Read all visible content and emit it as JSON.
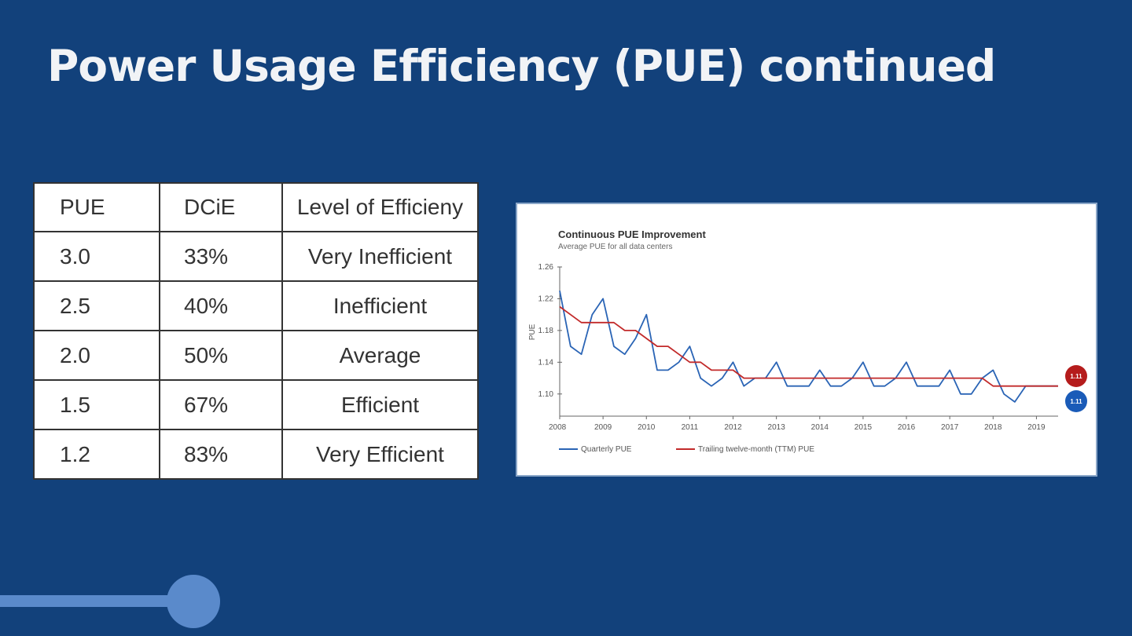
{
  "slide": {
    "title": "Power Usage Efficiency (PUE) continued"
  },
  "table": {
    "headers": [
      "PUE",
      "DCiE",
      "Level of Efficieny"
    ],
    "rows": [
      [
        "3.0",
        "33%",
        "Very Inefficient"
      ],
      [
        "2.5",
        "40%",
        "Inefficient"
      ],
      [
        "2.0",
        "50%",
        "Average"
      ],
      [
        "1.5",
        "67%",
        "Efficient"
      ],
      [
        "1.2",
        "83%",
        "Very Efficient"
      ]
    ]
  },
  "chart_data": {
    "type": "line",
    "title": "Continuous PUE Improvement",
    "subtitle": "Average PUE for all data centers",
    "ylabel": "PUE",
    "xlabel": "",
    "ylim": [
      1.08,
      1.26
    ],
    "yticks": [
      "1.26",
      "1.22",
      "1.18",
      "1.14",
      "1.10"
    ],
    "xticks": [
      "2008",
      "2009",
      "2010",
      "2011",
      "2012",
      "2013",
      "2014",
      "2015",
      "2016",
      "2017",
      "2018",
      "2019"
    ],
    "xlim": [
      2008,
      2019.5
    ],
    "grid": false,
    "legend_position": "bottom-left",
    "colors": {
      "quarterly": "#2a64b5",
      "ttm": "#c22a2a"
    },
    "series": [
      {
        "name": "Quarterly PUE",
        "x": [
          2008.0,
          2008.25,
          2008.5,
          2008.75,
          2009.0,
          2009.25,
          2009.5,
          2009.75,
          2010.0,
          2010.25,
          2010.5,
          2010.75,
          2011.0,
          2011.25,
          2011.5,
          2011.75,
          2012.0,
          2012.25,
          2012.5,
          2012.75,
          2013.0,
          2013.25,
          2013.5,
          2013.75,
          2014.0,
          2014.25,
          2014.5,
          2014.75,
          2015.0,
          2015.25,
          2015.5,
          2015.75,
          2016.0,
          2016.25,
          2016.5,
          2016.75,
          2017.0,
          2017.25,
          2017.5,
          2017.75,
          2018.0,
          2018.25,
          2018.5,
          2018.75,
          2019.0,
          2019.25,
          2019.5
        ],
        "y": [
          1.23,
          1.16,
          1.15,
          1.2,
          1.22,
          1.16,
          1.15,
          1.17,
          1.2,
          1.13,
          1.13,
          1.14,
          1.16,
          1.12,
          1.11,
          1.12,
          1.14,
          1.11,
          1.12,
          1.12,
          1.14,
          1.11,
          1.11,
          1.11,
          1.13,
          1.11,
          1.11,
          1.12,
          1.14,
          1.11,
          1.11,
          1.12,
          1.14,
          1.11,
          1.11,
          1.11,
          1.13,
          1.1,
          1.1,
          1.12,
          1.13,
          1.1,
          1.09,
          1.11,
          1.11,
          1.11,
          1.11
        ]
      },
      {
        "name": "Trailing twelve-month (TTM) PUE",
        "x": [
          2008.0,
          2008.25,
          2008.5,
          2008.75,
          2009.0,
          2009.25,
          2009.5,
          2009.75,
          2010.0,
          2010.25,
          2010.5,
          2010.75,
          2011.0,
          2011.25,
          2011.5,
          2011.75,
          2012.0,
          2012.25,
          2012.5,
          2012.75,
          2013.0,
          2013.25,
          2013.5,
          2014.0,
          2015.0,
          2016.0,
          2017.0,
          2017.75,
          2018.0,
          2018.25,
          2018.5,
          2018.75,
          2019.0,
          2019.25,
          2019.5
        ],
        "y": [
          1.21,
          1.2,
          1.19,
          1.19,
          1.19,
          1.19,
          1.18,
          1.18,
          1.17,
          1.16,
          1.16,
          1.15,
          1.14,
          1.14,
          1.13,
          1.13,
          1.13,
          1.12,
          1.12,
          1.12,
          1.12,
          1.12,
          1.12,
          1.12,
          1.12,
          1.12,
          1.12,
          1.12,
          1.11,
          1.11,
          1.11,
          1.11,
          1.11,
          1.11,
          1.11
        ]
      }
    ],
    "badges": [
      {
        "label": "1.11",
        "color": "#b51c1c"
      },
      {
        "label": "1.11",
        "color": "#1a5bb8"
      }
    ]
  }
}
